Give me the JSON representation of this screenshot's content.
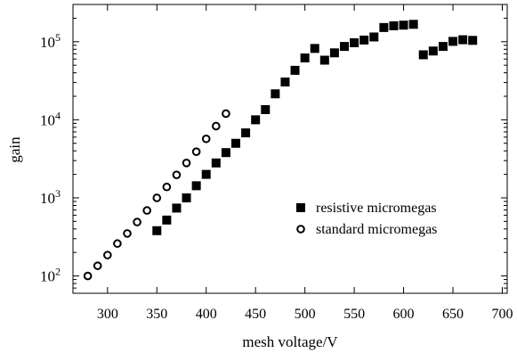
{
  "chart_data": {
    "type": "scatter",
    "title": "",
    "xlabel": "mesh voltage/V",
    "ylabel": "gain",
    "xlim": [
      265,
      705
    ],
    "ylim": [
      60,
      300000
    ],
    "y_scale": "log",
    "grid": false,
    "legend_position": "center-right",
    "x_ticks": [
      300,
      350,
      400,
      450,
      500,
      550,
      600,
      650,
      700
    ],
    "x_tick_labels": [
      "300",
      "350",
      "400",
      "450",
      "500",
      "550",
      "600",
      "650",
      "700"
    ],
    "y_ticks": [
      {
        "value": 100,
        "base": "10",
        "exp": "2"
      },
      {
        "value": 1000,
        "base": "10",
        "exp": "3"
      },
      {
        "value": 10000,
        "base": "10",
        "exp": "4"
      },
      {
        "value": 100000,
        "base": "10",
        "exp": "5"
      }
    ],
    "series": [
      {
        "name": "resistive micromegas",
        "marker": "filled-square",
        "color": "#000000",
        "x": [
          350,
          360,
          370,
          380,
          390,
          400,
          410,
          420,
          430,
          440,
          450,
          460,
          470,
          480,
          490,
          500,
          510,
          520,
          530,
          540,
          550,
          560,
          570,
          580,
          590,
          600,
          610,
          620,
          630,
          640,
          650,
          660,
          670
        ],
        "y": [
          380,
          520,
          740,
          1000,
          1430,
          2000,
          2800,
          3800,
          5000,
          6800,
          10000,
          13500,
          21500,
          30500,
          43000,
          62000,
          82000,
          58000,
          72000,
          87000,
          97000,
          105000,
          115000,
          152000,
          160000,
          163000,
          167000,
          68000,
          76000,
          87000,
          101000,
          106000,
          104000
        ]
      },
      {
        "name": "standard micromegas",
        "marker": "open-circle",
        "color": "#000000",
        "x": [
          280,
          290,
          300,
          310,
          320,
          330,
          340,
          350,
          360,
          370,
          380,
          390,
          400,
          410,
          420
        ],
        "y": [
          100,
          135,
          185,
          260,
          350,
          490,
          690,
          1000,
          1380,
          1970,
          2800,
          3900,
          5700,
          8300,
          12000
        ]
      }
    ]
  }
}
